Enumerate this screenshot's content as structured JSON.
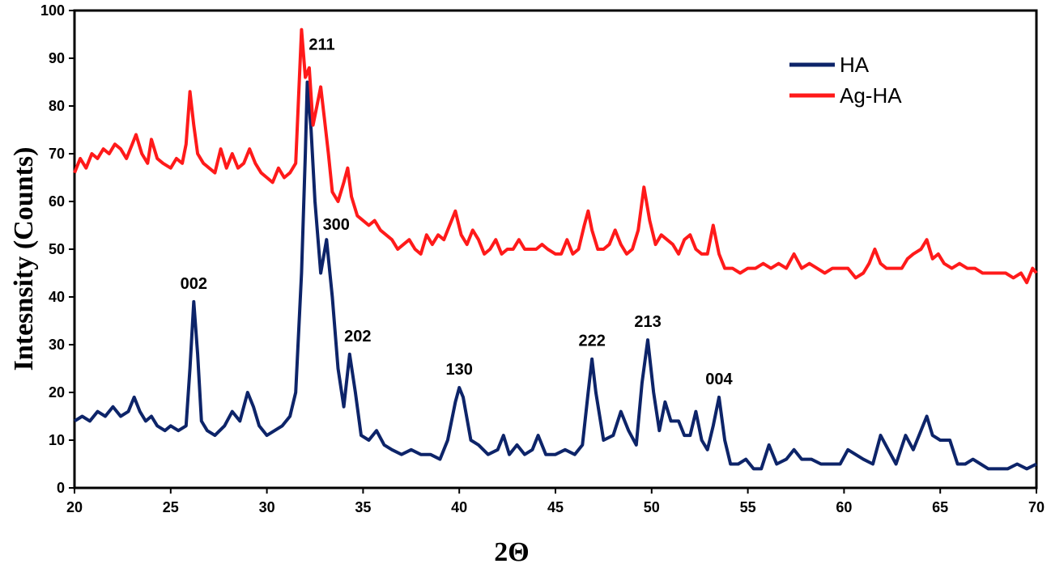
{
  "chart_data": {
    "type": "line",
    "title": "",
    "xlabel": "2Θ",
    "ylabel": "Intesnsity (Counts)",
    "xlim": [
      20,
      70
    ],
    "ylim": [
      0,
      100
    ],
    "x_ticks": [
      20,
      25,
      30,
      35,
      40,
      45,
      50,
      55,
      60,
      65,
      70
    ],
    "y_ticks": [
      0,
      10,
      20,
      30,
      40,
      50,
      60,
      70,
      80,
      90,
      100
    ],
    "x_tick_labels": [
      "20",
      "25",
      "30",
      "35",
      "40",
      "45",
      "50",
      "55",
      "60",
      "65",
      "70"
    ],
    "y_tick_labels": [
      "0",
      "10",
      "20",
      "30",
      "40",
      "50",
      "60",
      "70",
      "80",
      "90",
      "100"
    ],
    "grid": false,
    "legend_position": "top-right",
    "series": [
      {
        "name": "HA",
        "color": "#0d2469",
        "points": [
          [
            20,
            14
          ],
          [
            20.4,
            15
          ],
          [
            20.8,
            14
          ],
          [
            21.2,
            16
          ],
          [
            21.6,
            15
          ],
          [
            22,
            17
          ],
          [
            22.4,
            15
          ],
          [
            22.8,
            16
          ],
          [
            23.1,
            19
          ],
          [
            23.4,
            16
          ],
          [
            23.7,
            14
          ],
          [
            24,
            15
          ],
          [
            24.3,
            13
          ],
          [
            24.7,
            12
          ],
          [
            25,
            13
          ],
          [
            25.4,
            12
          ],
          [
            25.8,
            13
          ],
          [
            26,
            25
          ],
          [
            26.2,
            39
          ],
          [
            26.4,
            28
          ],
          [
            26.6,
            14
          ],
          [
            26.9,
            12
          ],
          [
            27.3,
            11
          ],
          [
            27.8,
            13
          ],
          [
            28.2,
            16
          ],
          [
            28.6,
            14
          ],
          [
            29,
            20
          ],
          [
            29.3,
            17
          ],
          [
            29.6,
            13
          ],
          [
            30,
            11
          ],
          [
            30.4,
            12
          ],
          [
            30.8,
            13
          ],
          [
            31.2,
            15
          ],
          [
            31.5,
            20
          ],
          [
            31.8,
            45
          ],
          [
            32,
            70
          ],
          [
            32.1,
            85
          ],
          [
            32.3,
            75
          ],
          [
            32.5,
            60
          ],
          [
            32.8,
            45
          ],
          [
            33.1,
            52
          ],
          [
            33.4,
            40
          ],
          [
            33.7,
            25
          ],
          [
            34,
            17
          ],
          [
            34.3,
            28
          ],
          [
            34.6,
            20
          ],
          [
            34.9,
            11
          ],
          [
            35.3,
            10
          ],
          [
            35.7,
            12
          ],
          [
            36.1,
            9
          ],
          [
            36.5,
            8
          ],
          [
            37,
            7
          ],
          [
            37.5,
            8
          ],
          [
            38,
            7
          ],
          [
            38.5,
            7
          ],
          [
            39,
            6
          ],
          [
            39.4,
            10
          ],
          [
            39.8,
            18
          ],
          [
            40,
            21
          ],
          [
            40.2,
            19
          ],
          [
            40.6,
            10
          ],
          [
            41,
            9
          ],
          [
            41.5,
            7
          ],
          [
            42,
            8
          ],
          [
            42.3,
            11
          ],
          [
            42.6,
            7
          ],
          [
            43,
            9
          ],
          [
            43.4,
            7
          ],
          [
            43.8,
            8
          ],
          [
            44.1,
            11
          ],
          [
            44.5,
            7
          ],
          [
            45,
            7
          ],
          [
            45.5,
            8
          ],
          [
            46,
            7
          ],
          [
            46.4,
            9
          ],
          [
            46.7,
            20
          ],
          [
            46.9,
            27
          ],
          [
            47.1,
            20
          ],
          [
            47.5,
            10
          ],
          [
            48,
            11
          ],
          [
            48.4,
            16
          ],
          [
            48.8,
            12
          ],
          [
            49.2,
            9
          ],
          [
            49.5,
            22
          ],
          [
            49.8,
            31
          ],
          [
            50.1,
            20
          ],
          [
            50.4,
            12
          ],
          [
            50.7,
            18
          ],
          [
            51,
            14
          ],
          [
            51.4,
            14
          ],
          [
            51.7,
            11
          ],
          [
            52,
            11
          ],
          [
            52.3,
            16
          ],
          [
            52.6,
            10
          ],
          [
            52.9,
            8
          ],
          [
            53.2,
            13
          ],
          [
            53.5,
            19
          ],
          [
            53.8,
            10
          ],
          [
            54.1,
            5
          ],
          [
            54.5,
            5
          ],
          [
            54.9,
            6
          ],
          [
            55.3,
            4
          ],
          [
            55.7,
            4
          ],
          [
            56.1,
            9
          ],
          [
            56.5,
            5
          ],
          [
            57,
            6
          ],
          [
            57.4,
            8
          ],
          [
            57.8,
            6
          ],
          [
            58.3,
            6
          ],
          [
            58.8,
            5
          ],
          [
            59.3,
            5
          ],
          [
            59.8,
            5
          ],
          [
            60.2,
            8
          ],
          [
            60.6,
            7
          ],
          [
            61,
            6
          ],
          [
            61.5,
            5
          ],
          [
            61.9,
            11
          ],
          [
            62.3,
            8
          ],
          [
            62.7,
            5
          ],
          [
            63.2,
            11
          ],
          [
            63.6,
            8
          ],
          [
            64,
            12
          ],
          [
            64.3,
            15
          ],
          [
            64.6,
            11
          ],
          [
            65,
            10
          ],
          [
            65.5,
            10
          ],
          [
            65.9,
            5
          ],
          [
            66.3,
            5
          ],
          [
            66.7,
            6
          ],
          [
            67.1,
            5
          ],
          [
            67.5,
            4
          ],
          [
            68,
            4
          ],
          [
            68.5,
            4
          ],
          [
            69,
            5
          ],
          [
            69.5,
            4
          ],
          [
            70,
            5
          ]
        ]
      },
      {
        "name": "Ag-HA",
        "color": "#ff1a1a",
        "points": [
          [
            20,
            66
          ],
          [
            20.3,
            69
          ],
          [
            20.6,
            67
          ],
          [
            20.9,
            70
          ],
          [
            21.2,
            69
          ],
          [
            21.5,
            71
          ],
          [
            21.8,
            70
          ],
          [
            22.1,
            72
          ],
          [
            22.4,
            71
          ],
          [
            22.7,
            69
          ],
          [
            23,
            72
          ],
          [
            23.2,
            74
          ],
          [
            23.5,
            70
          ],
          [
            23.8,
            68
          ],
          [
            24,
            73
          ],
          [
            24.3,
            69
          ],
          [
            24.6,
            68
          ],
          [
            25,
            67
          ],
          [
            25.3,
            69
          ],
          [
            25.6,
            68
          ],
          [
            25.8,
            72
          ],
          [
            26,
            83
          ],
          [
            26.2,
            76
          ],
          [
            26.4,
            70
          ],
          [
            26.7,
            68
          ],
          [
            27,
            67
          ],
          [
            27.3,
            66
          ],
          [
            27.6,
            71
          ],
          [
            27.9,
            67
          ],
          [
            28.2,
            70
          ],
          [
            28.5,
            67
          ],
          [
            28.8,
            68
          ],
          [
            29.1,
            71
          ],
          [
            29.4,
            68
          ],
          [
            29.7,
            66
          ],
          [
            30,
            65
          ],
          [
            30.3,
            64
          ],
          [
            30.6,
            67
          ],
          [
            30.9,
            65
          ],
          [
            31.2,
            66
          ],
          [
            31.5,
            68
          ],
          [
            31.8,
            96
          ],
          [
            32,
            86
          ],
          [
            32.2,
            88
          ],
          [
            32.4,
            76
          ],
          [
            32.6,
            80
          ],
          [
            32.8,
            84
          ],
          [
            33,
            77
          ],
          [
            33.2,
            70
          ],
          [
            33.4,
            62
          ],
          [
            33.7,
            60
          ],
          [
            34,
            64
          ],
          [
            34.2,
            67
          ],
          [
            34.4,
            61
          ],
          [
            34.7,
            57
          ],
          [
            35,
            56
          ],
          [
            35.3,
            55
          ],
          [
            35.6,
            56
          ],
          [
            35.9,
            54
          ],
          [
            36.2,
            53
          ],
          [
            36.5,
            52
          ],
          [
            36.8,
            50
          ],
          [
            37.1,
            51
          ],
          [
            37.4,
            52
          ],
          [
            37.7,
            50
          ],
          [
            38,
            49
          ],
          [
            38.3,
            53
          ],
          [
            38.6,
            51
          ],
          [
            38.9,
            53
          ],
          [
            39.2,
            52
          ],
          [
            39.5,
            55
          ],
          [
            39.8,
            58
          ],
          [
            40.1,
            53
          ],
          [
            40.4,
            51
          ],
          [
            40.7,
            54
          ],
          [
            41,
            52
          ],
          [
            41.3,
            49
          ],
          [
            41.6,
            50
          ],
          [
            41.9,
            52
          ],
          [
            42.2,
            49
          ],
          [
            42.5,
            50
          ],
          [
            42.8,
            50
          ],
          [
            43.1,
            52
          ],
          [
            43.4,
            50
          ],
          [
            43.7,
            50
          ],
          [
            44,
            50
          ],
          [
            44.3,
            51
          ],
          [
            44.6,
            50
          ],
          [
            45,
            49
          ],
          [
            45.3,
            49
          ],
          [
            45.6,
            52
          ],
          [
            45.9,
            49
          ],
          [
            46.2,
            50
          ],
          [
            46.5,
            55
          ],
          [
            46.7,
            58
          ],
          [
            46.9,
            54
          ],
          [
            47.2,
            50
          ],
          [
            47.5,
            50
          ],
          [
            47.8,
            51
          ],
          [
            48.1,
            54
          ],
          [
            48.4,
            51
          ],
          [
            48.7,
            49
          ],
          [
            49,
            50
          ],
          [
            49.3,
            54
          ],
          [
            49.6,
            63
          ],
          [
            49.9,
            56
          ],
          [
            50.2,
            51
          ],
          [
            50.5,
            53
          ],
          [
            50.8,
            52
          ],
          [
            51.1,
            51
          ],
          [
            51.4,
            49
          ],
          [
            51.7,
            52
          ],
          [
            52,
            53
          ],
          [
            52.3,
            50
          ],
          [
            52.6,
            49
          ],
          [
            52.9,
            49
          ],
          [
            53.2,
            55
          ],
          [
            53.5,
            49
          ],
          [
            53.8,
            46
          ],
          [
            54.2,
            46
          ],
          [
            54.6,
            45
          ],
          [
            55,
            46
          ],
          [
            55.4,
            46
          ],
          [
            55.8,
            47
          ],
          [
            56.2,
            46
          ],
          [
            56.6,
            47
          ],
          [
            57,
            46
          ],
          [
            57.4,
            49
          ],
          [
            57.8,
            46
          ],
          [
            58.2,
            47
          ],
          [
            58.6,
            46
          ],
          [
            59,
            45
          ],
          [
            59.4,
            46
          ],
          [
            59.8,
            46
          ],
          [
            60.2,
            46
          ],
          [
            60.6,
            44
          ],
          [
            61,
            45
          ],
          [
            61.3,
            47
          ],
          [
            61.6,
            50
          ],
          [
            61.9,
            47
          ],
          [
            62.2,
            46
          ],
          [
            62.6,
            46
          ],
          [
            63,
            46
          ],
          [
            63.3,
            48
          ],
          [
            63.6,
            49
          ],
          [
            64,
            50
          ],
          [
            64.3,
            52
          ],
          [
            64.6,
            48
          ],
          [
            64.9,
            49
          ],
          [
            65.2,
            47
          ],
          [
            65.6,
            46
          ],
          [
            66,
            47
          ],
          [
            66.4,
            46
          ],
          [
            66.8,
            46
          ],
          [
            67.2,
            45
          ],
          [
            67.6,
            45
          ],
          [
            68,
            45
          ],
          [
            68.4,
            45
          ],
          [
            68.8,
            44
          ],
          [
            69.2,
            45
          ],
          [
            69.5,
            43
          ],
          [
            69.8,
            46
          ],
          [
            70,
            45
          ]
        ]
      }
    ],
    "annotations": [
      {
        "label": "002",
        "x": 26.2,
        "y": 39
      },
      {
        "label": "211",
        "x": 32.1,
        "y": 85
      },
      {
        "label": "300",
        "x": 33.1,
        "y": 52
      },
      {
        "label": "202",
        "x": 34.3,
        "y": 28
      },
      {
        "label": "130",
        "x": 40.0,
        "y": 21
      },
      {
        "label": "222",
        "x": 46.9,
        "y": 27
      },
      {
        "label": "213",
        "x": 49.8,
        "y": 31
      },
      {
        "label": "004",
        "x": 53.5,
        "y": 19
      }
    ]
  }
}
